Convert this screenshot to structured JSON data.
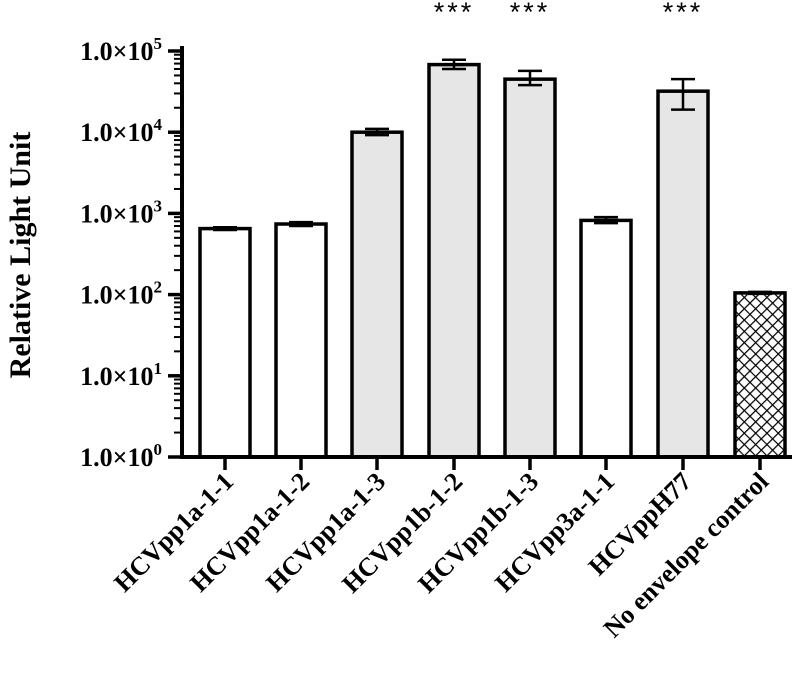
{
  "chart_data": {
    "type": "bar",
    "title": "",
    "xlabel": "",
    "ylabel": "Relative Light Unit",
    "yscale": "log",
    "ylim": [
      1,
      100000
    ],
    "ytick_labels": [
      {
        "mantissa": "1.0×10",
        "exp": "0"
      },
      {
        "mantissa": "1.0×10",
        "exp": "1"
      },
      {
        "mantissa": "1.0×10",
        "exp": "2"
      },
      {
        "mantissa": "1.0×10",
        "exp": "3"
      },
      {
        "mantissa": "1.0×10",
        "exp": "4"
      },
      {
        "mantissa": "1.0×10",
        "exp": "5"
      }
    ],
    "categories": [
      "HCVpp1a-1-1",
      "HCVpp1a-1-2",
      "HCVpp1a-1-3",
      "HCVpp1b-1-2",
      "HCVpp1b-1-3",
      "HCVpp3a-1-1",
      "HCVppH77",
      "No envelope control"
    ],
    "values": [
      650,
      740,
      10000,
      68000,
      45000,
      820,
      32000,
      105
    ],
    "error_low": [
      625,
      700,
      9200,
      60000,
      38000,
      760,
      19000,
      102
    ],
    "error_high": [
      675,
      780,
      11000,
      78000,
      57000,
      900,
      45000,
      108
    ],
    "fills": [
      "white",
      "white",
      "gray",
      "gray",
      "gray",
      "white",
      "gray",
      "hatch"
    ],
    "significance": [
      "",
      "",
      "",
      "***",
      "***",
      "",
      "***",
      ""
    ],
    "grid": false,
    "colors": {
      "white": "#ffffff",
      "gray": "#e6e6e6",
      "hatch": "#000000"
    }
  }
}
